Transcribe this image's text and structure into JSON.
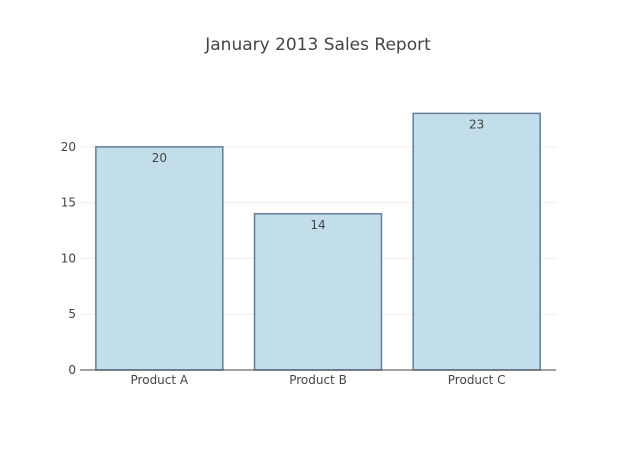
{
  "chart_data": {
    "type": "bar",
    "title": "January 2013 Sales Report",
    "categories": [
      "Product A",
      "Product B",
      "Product C"
    ],
    "values": [
      20,
      14,
      23
    ],
    "data_labels": [
      "20",
      "14",
      "23"
    ],
    "xlabel": "",
    "ylabel": "",
    "ylim": [
      0,
      24.2
    ],
    "yticks": [
      0,
      5,
      10,
      15,
      20
    ],
    "ytick_labels": [
      "0",
      "5",
      "10",
      "15",
      "20"
    ],
    "grid": true,
    "legend": "none",
    "colors": {
      "bar_fill": "#c3deeb",
      "bar_stroke": "#627d9e",
      "grid": "#eeeeee",
      "axis": "#444444",
      "text": "#444444"
    }
  }
}
